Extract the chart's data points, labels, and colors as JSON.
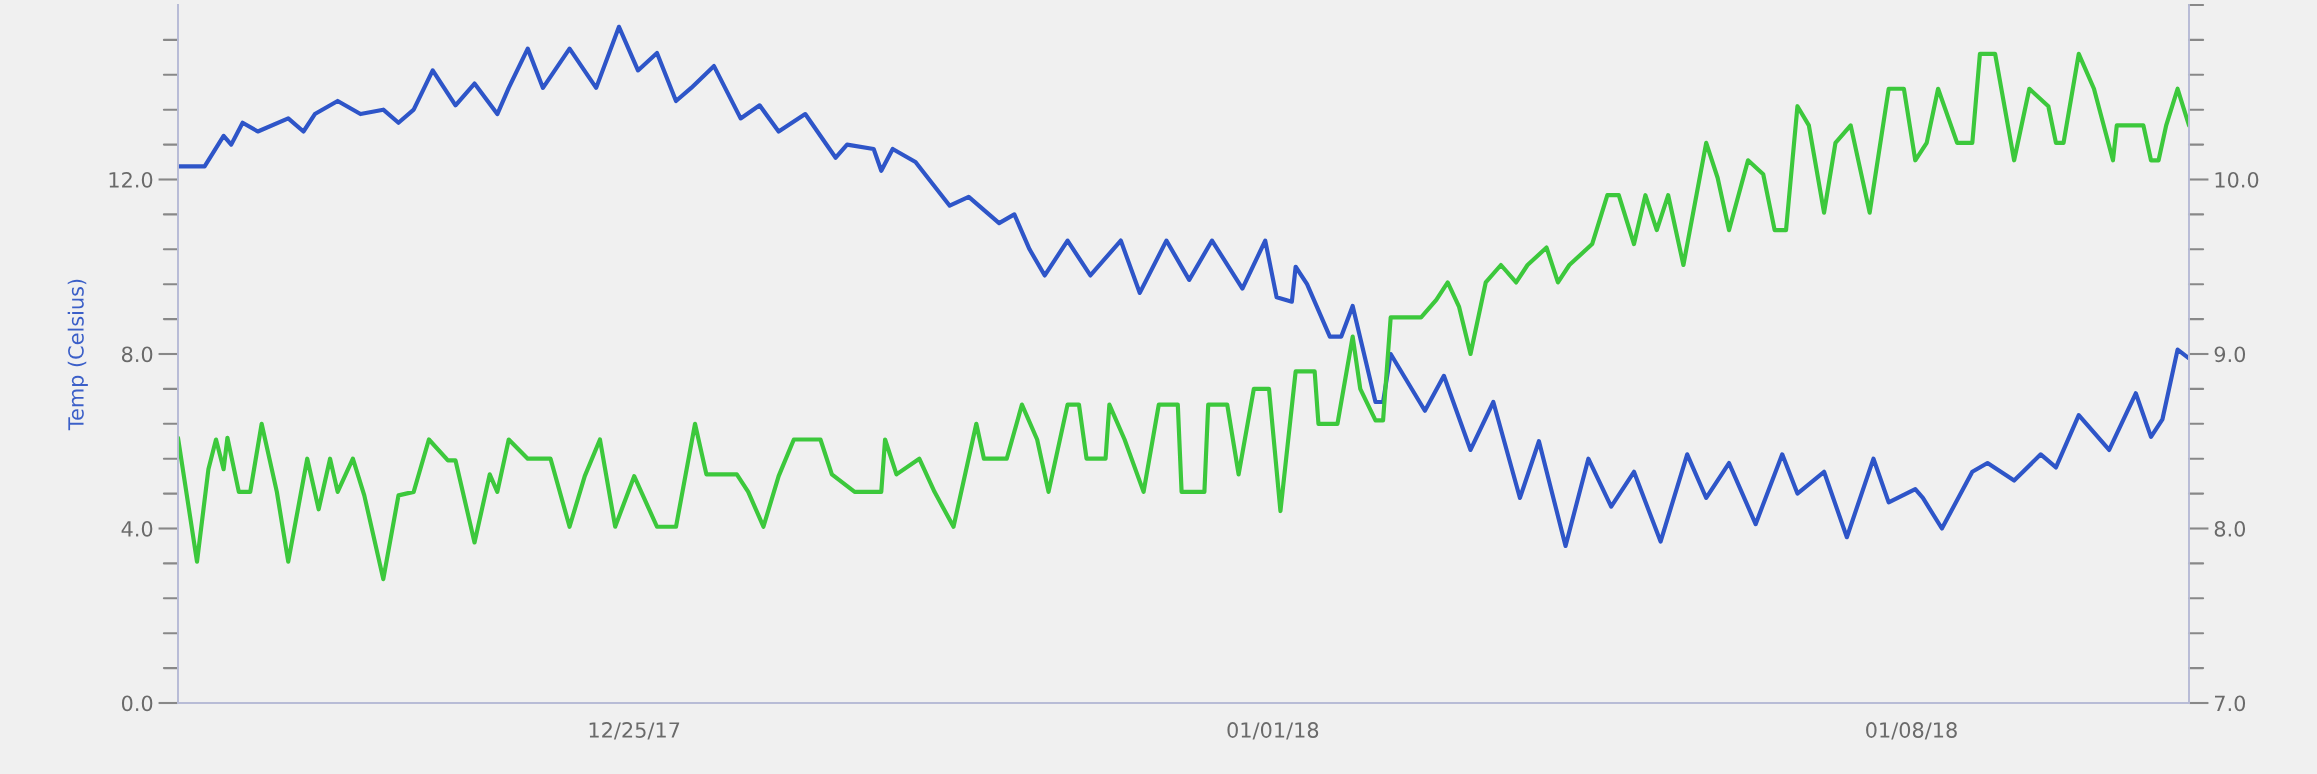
{
  "chart_data": {
    "type": "line",
    "ylabel": "Temp (Celsius)",
    "grid": false,
    "marker": "none",
    "line_style": "solid",
    "xlim": [
      "2017-12-20T00:00",
      "2018-01-11T01:00"
    ],
    "xticks": [
      {
        "value": "2017-12-25",
        "label": "12/25/17"
      },
      {
        "value": "2018-01-01",
        "label": "01/01/18"
      },
      {
        "value": "2018-01-08",
        "label": "01/08/18"
      }
    ],
    "ylim": [
      0,
      16
    ],
    "yticks": [
      {
        "value": 0,
        "label": "0.0"
      },
      {
        "value": 0.8,
        "label": null
      },
      {
        "value": 1.6,
        "label": null
      },
      {
        "value": 2.4,
        "label": null
      },
      {
        "value": 3.2,
        "label": null
      },
      {
        "value": 4,
        "label": "4.0"
      },
      {
        "value": 4.8,
        "label": null
      },
      {
        "value": 5.6,
        "label": null
      },
      {
        "value": 6.4,
        "label": null
      },
      {
        "value": 7.2,
        "label": null
      },
      {
        "value": 8,
        "label": "8.0"
      },
      {
        "value": 8.8,
        "label": null
      },
      {
        "value": 9.6,
        "label": null
      },
      {
        "value": 10.4,
        "label": null
      },
      {
        "value": 11.2,
        "label": null
      },
      {
        "value": 12,
        "label": "12.0"
      },
      {
        "value": 12.8,
        "label": null
      },
      {
        "value": 13.6,
        "label": null
      },
      {
        "value": 14.4,
        "label": null
      },
      {
        "value": 15.2,
        "label": null
      }
    ],
    "y2lim": [
      7,
      11
    ],
    "y2ticks": [
      {
        "value": 7,
        "label": "7.0"
      },
      {
        "value": 7.2,
        "label": null
      },
      {
        "value": 7.4,
        "label": null
      },
      {
        "value": 7.6,
        "label": null
      },
      {
        "value": 7.8,
        "label": null
      },
      {
        "value": 8,
        "label": "8.0"
      },
      {
        "value": 8.2,
        "label": null
      },
      {
        "value": 8.4,
        "label": null
      },
      {
        "value": 8.6,
        "label": null
      },
      {
        "value": 8.8,
        "label": null
      },
      {
        "value": 9,
        "label": "9.0"
      },
      {
        "value": 9.2,
        "label": null
      },
      {
        "value": 9.4,
        "label": null
      },
      {
        "value": 9.6,
        "label": null
      },
      {
        "value": 9.8,
        "label": null
      },
      {
        "value": 10,
        "label": "10.0"
      },
      {
        "value": 10.2,
        "label": null
      },
      {
        "value": 10.4,
        "label": null
      },
      {
        "value": 10.6,
        "label": null
      },
      {
        "value": 10.8,
        "label": null
      },
      {
        "value": 11,
        "label": null
      }
    ],
    "series": [
      {
        "color": "#2e55c8",
        "x": [
          "2017-12-20T00:00",
          "2017-12-20T07:00",
          "2017-12-20T12:00",
          "2017-12-20T14:00",
          "2017-12-20T17:00",
          "2017-12-20T21:00",
          "2017-12-21T05:00",
          "2017-12-21T09:00",
          "2017-12-21T12:00",
          "2017-12-21T18:00",
          "2017-12-22T00:00",
          "2017-12-22T06:00",
          "2017-12-22T10:00",
          "2017-12-22T14:00",
          "2017-12-22T19:00",
          "2017-12-22T22:00",
          "2017-12-23T01:00",
          "2017-12-23T06:00",
          "2017-12-23T12:00",
          "2017-12-23T15:00",
          "2017-12-23T20:00",
          "2017-12-24T00:00",
          "2017-12-24T07:00",
          "2017-12-24T14:00",
          "2017-12-24T20:00",
          "2017-12-25T01:00",
          "2017-12-25T06:00",
          "2017-12-25T11:00",
          "2017-12-25T15:00",
          "2017-12-25T21:00",
          "2017-12-26T04:00",
          "2017-12-26T09:00",
          "2017-12-26T14:00",
          "2017-12-26T21:00",
          "2017-12-27T05:00",
          "2017-12-27T08:00",
          "2017-12-27T15:00",
          "2017-12-27T17:00",
          "2017-12-27T20:00",
          "2017-12-28T02:00",
          "2017-12-28T11:00",
          "2017-12-28T16:00",
          "2017-12-29T00:00",
          "2017-12-29T04:00",
          "2017-12-29T08:00",
          "2017-12-29T12:00",
          "2017-12-29T18:00",
          "2017-12-30T00:00",
          "2017-12-30T08:00",
          "2017-12-30T13:00",
          "2017-12-30T20:00",
          "2017-12-31T02:00",
          "2017-12-31T08:00",
          "2017-12-31T16:00",
          "2017-12-31T22:00",
          "2018-01-01T01:00",
          "2018-01-01T05:00",
          "2018-01-01T06:00",
          "2018-01-01T09:00",
          "2018-01-01T15:00",
          "2018-01-01T18:00",
          "2018-01-01T21:00",
          "2018-01-02T03:00",
          "2018-01-02T05:00",
          "2018-01-02T07:00",
          "2018-01-02T16:00",
          "2018-01-02T21:00",
          "2018-01-03T04:00",
          "2018-01-03T10:00",
          "2018-01-03T17:00",
          "2018-01-03T22:00",
          "2018-01-04T05:00",
          "2018-01-04T11:00",
          "2018-01-04T17:00",
          "2018-01-04T23:00",
          "2018-01-05T06:00",
          "2018-01-05T13:00",
          "2018-01-05T18:00",
          "2018-01-06T00:00",
          "2018-01-06T07:00",
          "2018-01-06T14:00",
          "2018-01-06T18:00",
          "2018-01-07T01:00",
          "2018-01-07T07:00",
          "2018-01-07T14:00",
          "2018-01-07T18:00",
          "2018-01-08T01:00",
          "2018-01-08T03:00",
          "2018-01-08T08:00",
          "2018-01-08T16:00",
          "2018-01-08T20:00",
          "2018-01-09T03:00",
          "2018-01-09T10:00",
          "2018-01-09T14:00",
          "2018-01-09T20:00",
          "2018-01-10T04:00",
          "2018-01-10T11:00",
          "2018-01-10T15:00",
          "2018-01-10T18:00",
          "2018-01-10T22:00",
          "2018-01-11T01:00"
        ],
        "values": [
          12.3,
          12.3,
          13.0,
          12.8,
          13.3,
          13.1,
          13.4,
          13.1,
          13.5,
          13.8,
          13.5,
          13.6,
          13.3,
          13.6,
          14.5,
          14.1,
          13.7,
          14.2,
          13.5,
          14.1,
          15.0,
          14.1,
          15.0,
          14.1,
          15.5,
          14.5,
          14.9,
          13.8,
          14.1,
          14.6,
          13.4,
          13.7,
          13.1,
          13.5,
          12.5,
          12.8,
          12.7,
          12.2,
          12.7,
          12.4,
          11.4,
          11.6,
          11.0,
          11.2,
          10.4,
          9.8,
          10.6,
          9.8,
          10.6,
          9.4,
          10.6,
          9.7,
          10.6,
          9.5,
          10.6,
          9.3,
          9.2,
          10.0,
          9.6,
          8.4,
          8.4,
          9.1,
          6.9,
          6.9,
          8.0,
          6.7,
          7.5,
          5.8,
          6.9,
          4.7,
          6.0,
          3.6,
          5.6,
          4.5,
          5.3,
          3.7,
          5.7,
          4.7,
          5.5,
          4.1,
          5.7,
          4.8,
          5.3,
          3.8,
          5.6,
          4.6,
          4.9,
          4.7,
          4.0,
          5.3,
          5.5,
          5.1,
          5.7,
          5.4,
          6.6,
          5.8,
          7.1,
          6.1,
          6.5,
          8.1,
          7.9
        ]
      },
      {
        "color": "#3cc83c",
        "axis": "y2",
        "x": [
          "2017-12-20T00:00",
          "2017-12-20T05:00",
          "2017-12-20T08:00",
          "2017-12-20T10:00",
          "2017-12-20T12:00",
          "2017-12-20T13:00",
          "2017-12-20T16:00",
          "2017-12-20T19:00",
          "2017-12-20T22:00",
          "2017-12-21T02:00",
          "2017-12-21T05:00",
          "2017-12-21T10:00",
          "2017-12-21T13:00",
          "2017-12-21T16:00",
          "2017-12-21T18:00",
          "2017-12-21T22:00",
          "2017-12-22T01:00",
          "2017-12-22T06:00",
          "2017-12-22T10:00",
          "2017-12-22T14:00",
          "2017-12-22T18:00",
          "2017-12-22T23:00",
          "2017-12-23T01:00",
          "2017-12-23T06:00",
          "2017-12-23T10:00",
          "2017-12-23T12:00",
          "2017-12-23T15:00",
          "2017-12-23T20:00",
          "2017-12-24T02:00",
          "2017-12-24T07:00",
          "2017-12-24T11:00",
          "2017-12-24T15:00",
          "2017-12-24T19:00",
          "2017-12-25T00:00",
          "2017-12-25T06:00",
          "2017-12-25T11:00",
          "2017-12-25T16:00",
          "2017-12-25T19:00",
          "2017-12-26T03:00",
          "2017-12-26T06:00",
          "2017-12-26T10:00",
          "2017-12-26T14:00",
          "2017-12-26T18:00",
          "2017-12-27T01:00",
          "2017-12-27T04:00",
          "2017-12-27T10:00",
          "2017-12-27T17:00",
          "2017-12-27T18:00",
          "2017-12-27T21:00",
          "2017-12-28T03:00",
          "2017-12-28T07:00",
          "2017-12-28T12:00",
          "2017-12-28T18:00",
          "2017-12-28T20:00",
          "2017-12-29T02:00",
          "2017-12-29T06:00",
          "2017-12-29T10:00",
          "2017-12-29T13:00",
          "2017-12-29T18:00",
          "2017-12-29T21:00",
          "2017-12-29T23:00",
          "2017-12-30T04:00",
          "2017-12-30T05:00",
          "2017-12-30T09:00",
          "2017-12-30T14:00",
          "2017-12-30T18:00",
          "2017-12-30T23:00",
          "2017-12-31T00:00",
          "2017-12-31T06:00",
          "2017-12-31T07:00",
          "2017-12-31T12:00",
          "2017-12-31T15:00",
          "2017-12-31T19:00",
          "2017-12-31T23:00",
          "2018-01-01T02:00",
          "2018-01-01T06:00",
          "2018-01-01T11:00",
          "2018-01-01T12:00",
          "2018-01-01T17:00",
          "2018-01-01T21:00",
          "2018-01-01T23:00",
          "2018-01-02T03:00",
          "2018-01-02T05:00",
          "2018-01-02T07:00",
          "2018-01-02T15:00",
          "2018-01-02T19:00",
          "2018-01-02T22:00",
          "2018-01-03T01:00",
          "2018-01-03T04:00",
          "2018-01-03T08:00",
          "2018-01-03T12:00",
          "2018-01-03T16:00",
          "2018-01-03T19:00",
          "2018-01-04T00:00",
          "2018-01-04T03:00",
          "2018-01-04T06:00",
          "2018-01-04T12:00",
          "2018-01-04T16:00",
          "2018-01-04T19:00",
          "2018-01-04T23:00",
          "2018-01-05T02:00",
          "2018-01-05T05:00",
          "2018-01-05T08:00",
          "2018-01-05T12:00",
          "2018-01-05T18:00",
          "2018-01-05T21:00",
          "2018-01-06T00:00",
          "2018-01-06T05:00",
          "2018-01-06T09:00",
          "2018-01-06T12:00",
          "2018-01-06T15:00",
          "2018-01-06T18:00",
          "2018-01-06T21:00",
          "2018-01-07T01:00",
          "2018-01-07T04:00",
          "2018-01-07T08:00",
          "2018-01-07T13:00",
          "2018-01-07T18:00",
          "2018-01-07T22:00",
          "2018-01-08T01:00",
          "2018-01-08T04:00",
          "2018-01-08T07:00",
          "2018-01-08T12:00",
          "2018-01-08T16:00",
          "2018-01-08T18:00",
          "2018-01-08T22:00",
          "2018-01-09T03:00",
          "2018-01-09T07:00",
          "2018-01-09T12:00",
          "2018-01-09T14:00",
          "2018-01-09T16:00",
          "2018-01-09T20:00",
          "2018-01-10T00:00",
          "2018-01-10T05:00",
          "2018-01-10T06:00",
          "2018-01-10T13:00",
          "2018-01-10T15:00",
          "2018-01-10T17:00",
          "2018-01-10T19:00",
          "2018-01-10T22:00",
          "2018-01-11T01:00"
        ],
        "values": [
          8.52,
          7.81,
          8.34,
          8.51,
          8.34,
          8.52,
          8.21,
          8.21,
          8.6,
          8.21,
          7.81,
          8.4,
          8.11,
          8.4,
          8.21,
          8.4,
          8.19,
          7.71,
          8.19,
          8.21,
          8.51,
          8.39,
          8.39,
          7.92,
          8.31,
          8.21,
          8.51,
          8.4,
          8.4,
          8.01,
          8.3,
          8.51,
          8.01,
          8.3,
          8.01,
          8.01,
          8.6,
          8.31,
          8.31,
          8.21,
          8.01,
          8.3,
          8.51,
          8.51,
          8.31,
          8.21,
          8.21,
          8.51,
          8.31,
          8.4,
          8.21,
          8.01,
          8.6,
          8.4,
          8.4,
          8.71,
          8.51,
          8.21,
          8.71,
          8.71,
          8.4,
          8.4,
          8.71,
          8.51,
          8.21,
          8.71,
          8.71,
          8.21,
          8.21,
          8.71,
          8.71,
          8.31,
          8.8,
          8.8,
          8.1,
          8.9,
          8.9,
          8.6,
          8.6,
          9.1,
          8.8,
          8.62,
          8.62,
          9.21,
          9.21,
          9.31,
          9.41,
          9.27,
          9.0,
          9.41,
          9.51,
          9.41,
          9.51,
          9.61,
          9.41,
          9.51,
          9.63,
          9.91,
          9.91,
          9.63,
          9.91,
          9.71,
          9.91,
          9.51,
          10.21,
          10.01,
          9.71,
          10.11,
          10.03,
          9.71,
          9.71,
          10.42,
          10.31,
          9.81,
          10.21,
          10.31,
          9.81,
          10.52,
          10.52,
          10.11,
          10.21,
          10.52,
          10.21,
          10.21,
          10.72,
          10.72,
          10.11,
          10.52,
          10.42,
          10.21,
          10.21,
          10.72,
          10.52,
          10.11,
          10.31,
          10.31,
          10.11,
          10.11,
          10.31,
          10.52,
          10.31
        ]
      }
    ]
  }
}
